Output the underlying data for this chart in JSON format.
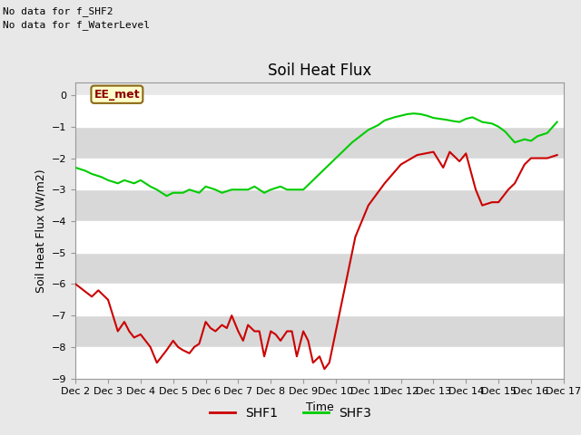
{
  "title": "Soil Heat Flux",
  "xlabel": "Time",
  "ylabel": "Soil Heat Flux (W/m2)",
  "ylim": [
    -9.0,
    0.4
  ],
  "yticks": [
    0.0,
    -1.0,
    -2.0,
    -3.0,
    -4.0,
    -5.0,
    -6.0,
    -7.0,
    -8.0,
    -9.0
  ],
  "background_color": "#e8e8e8",
  "plot_bg_color": "#e8e8e8",
  "no_data_text": [
    "No data for f_SHF2",
    "No data for f_WaterLevel"
  ],
  "label_box_text": "EE_met",
  "label_box_bg": "#ffffcc",
  "label_box_border": "#8b6914",
  "label_box_text_color": "#8b0000",
  "shf1_color": "#cc0000",
  "shf3_color": "#00cc00",
  "legend_labels": [
    "SHF1",
    "SHF3"
  ],
  "xtick_labels": [
    "Dec 2",
    "Dec 3",
    "Dec 4",
    "Dec 5",
    "Dec 6",
    "Dec 7",
    "Dec 8",
    "Dec 9",
    "Dec 9",
    "Dec 10",
    "Dec 11",
    "Dec 12",
    "Dec 13",
    "Dec 14",
    "Dec 15",
    "Dec 16",
    "Dec 17"
  ],
  "shf1_x": [
    0.0,
    0.25,
    0.5,
    0.7,
    1.0,
    1.15,
    1.3,
    1.5,
    1.65,
    1.8,
    2.0,
    2.15,
    2.3,
    2.5,
    2.65,
    2.8,
    3.0,
    3.15,
    3.3,
    3.5,
    3.65,
    3.8,
    4.0,
    4.15,
    4.3,
    4.5,
    4.65,
    4.8,
    5.0,
    5.15,
    5.3,
    5.5,
    5.65,
    5.8,
    6.0,
    6.15,
    6.3,
    6.5,
    6.65,
    6.8,
    7.0,
    7.15,
    7.3,
    7.5,
    7.65,
    7.8,
    8.0,
    8.3,
    8.6,
    9.0,
    9.5,
    10.0,
    10.5,
    11.0,
    11.3,
    11.5,
    11.8,
    12.0,
    12.3,
    12.5,
    12.8,
    13.0,
    13.3,
    13.5,
    13.8,
    14.0,
    14.3,
    14.5,
    14.8
  ],
  "shf1_y": [
    -6.0,
    -6.2,
    -6.4,
    -6.2,
    -6.5,
    -7.0,
    -7.5,
    -7.2,
    -7.5,
    -7.7,
    -7.6,
    -7.8,
    -8.0,
    -8.5,
    -8.3,
    -8.1,
    -7.8,
    -8.0,
    -8.1,
    -8.2,
    -8.0,
    -7.9,
    -7.2,
    -7.4,
    -7.5,
    -7.3,
    -7.4,
    -7.0,
    -7.5,
    -7.8,
    -7.3,
    -7.5,
    -7.5,
    -8.3,
    -7.5,
    -7.6,
    -7.8,
    -7.5,
    -7.5,
    -8.3,
    -7.5,
    -7.8,
    -8.5,
    -8.3,
    -8.7,
    -8.5,
    -7.5,
    -6.0,
    -4.5,
    -3.5,
    -2.8,
    -2.2,
    -1.9,
    -1.8,
    -2.3,
    -1.8,
    -2.1,
    -1.85,
    -3.0,
    -3.5,
    -3.4,
    -3.4,
    -3.0,
    -2.8,
    -2.2,
    -2.0,
    -2.0,
    -2.0,
    -1.9
  ],
  "shf3_x": [
    0.0,
    0.3,
    0.5,
    0.8,
    1.0,
    1.3,
    1.5,
    1.8,
    2.0,
    2.3,
    2.5,
    2.8,
    3.0,
    3.3,
    3.5,
    3.8,
    4.0,
    4.3,
    4.5,
    4.8,
    5.0,
    5.3,
    5.5,
    5.8,
    6.0,
    6.3,
    6.5,
    6.8,
    7.0,
    7.5,
    8.0,
    8.5,
    9.0,
    9.3,
    9.5,
    9.8,
    10.0,
    10.2,
    10.4,
    10.6,
    10.8,
    11.0,
    11.2,
    11.4,
    11.5,
    11.6,
    11.8,
    12.0,
    12.2,
    12.4,
    12.5,
    12.8,
    13.0,
    13.2,
    13.5,
    13.8,
    14.0,
    14.2,
    14.5,
    14.8
  ],
  "shf3_y": [
    -2.3,
    -2.4,
    -2.5,
    -2.6,
    -2.7,
    -2.8,
    -2.7,
    -2.8,
    -2.7,
    -2.9,
    -3.0,
    -3.2,
    -3.1,
    -3.1,
    -3.0,
    -3.1,
    -2.9,
    -3.0,
    -3.1,
    -3.0,
    -3.0,
    -3.0,
    -2.9,
    -3.1,
    -3.0,
    -2.9,
    -3.0,
    -3.0,
    -3.0,
    -2.5,
    -2.0,
    -1.5,
    -1.1,
    -0.95,
    -0.8,
    -0.7,
    -0.65,
    -0.6,
    -0.58,
    -0.6,
    -0.65,
    -0.72,
    -0.75,
    -0.78,
    -0.8,
    -0.82,
    -0.85,
    -0.75,
    -0.7,
    -0.8,
    -0.85,
    -0.9,
    -1.0,
    -1.15,
    -1.5,
    -1.4,
    -1.45,
    -1.3,
    -1.2,
    -0.85
  ]
}
